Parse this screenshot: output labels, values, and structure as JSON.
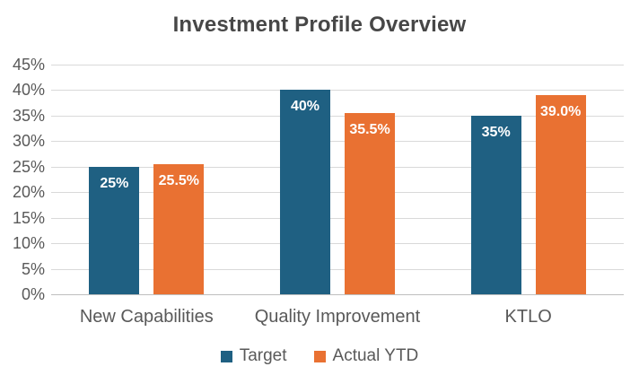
{
  "chart_data": {
    "type": "bar",
    "title": "Investment Profile Overview",
    "categories": [
      "New Capabilities",
      "Quality Improvement",
      "KTLO"
    ],
    "series": [
      {
        "name": "Target",
        "color": "#1F6082",
        "values": [
          25,
          40,
          35
        ],
        "labels": [
          "25%",
          "40%",
          "35%"
        ]
      },
      {
        "name": "Actual YTD",
        "color": "#E97132",
        "values": [
          25.5,
          35.5,
          39.0
        ],
        "labels": [
          "25.5%",
          "35.5%",
          "39.0%"
        ]
      }
    ],
    "y_axis": {
      "min": 0,
      "max": 45,
      "step": 5,
      "tick_labels": [
        "0%",
        "5%",
        "10%",
        "15%",
        "20%",
        "25%",
        "30%",
        "35%",
        "40%",
        "45%"
      ]
    },
    "xlabel": "",
    "ylabel": "",
    "grid": true,
    "legend_position": "bottom",
    "data_label_color": "#FFFFFF",
    "text_color": "#595959",
    "gridline_color": "#D9D9D9"
  }
}
